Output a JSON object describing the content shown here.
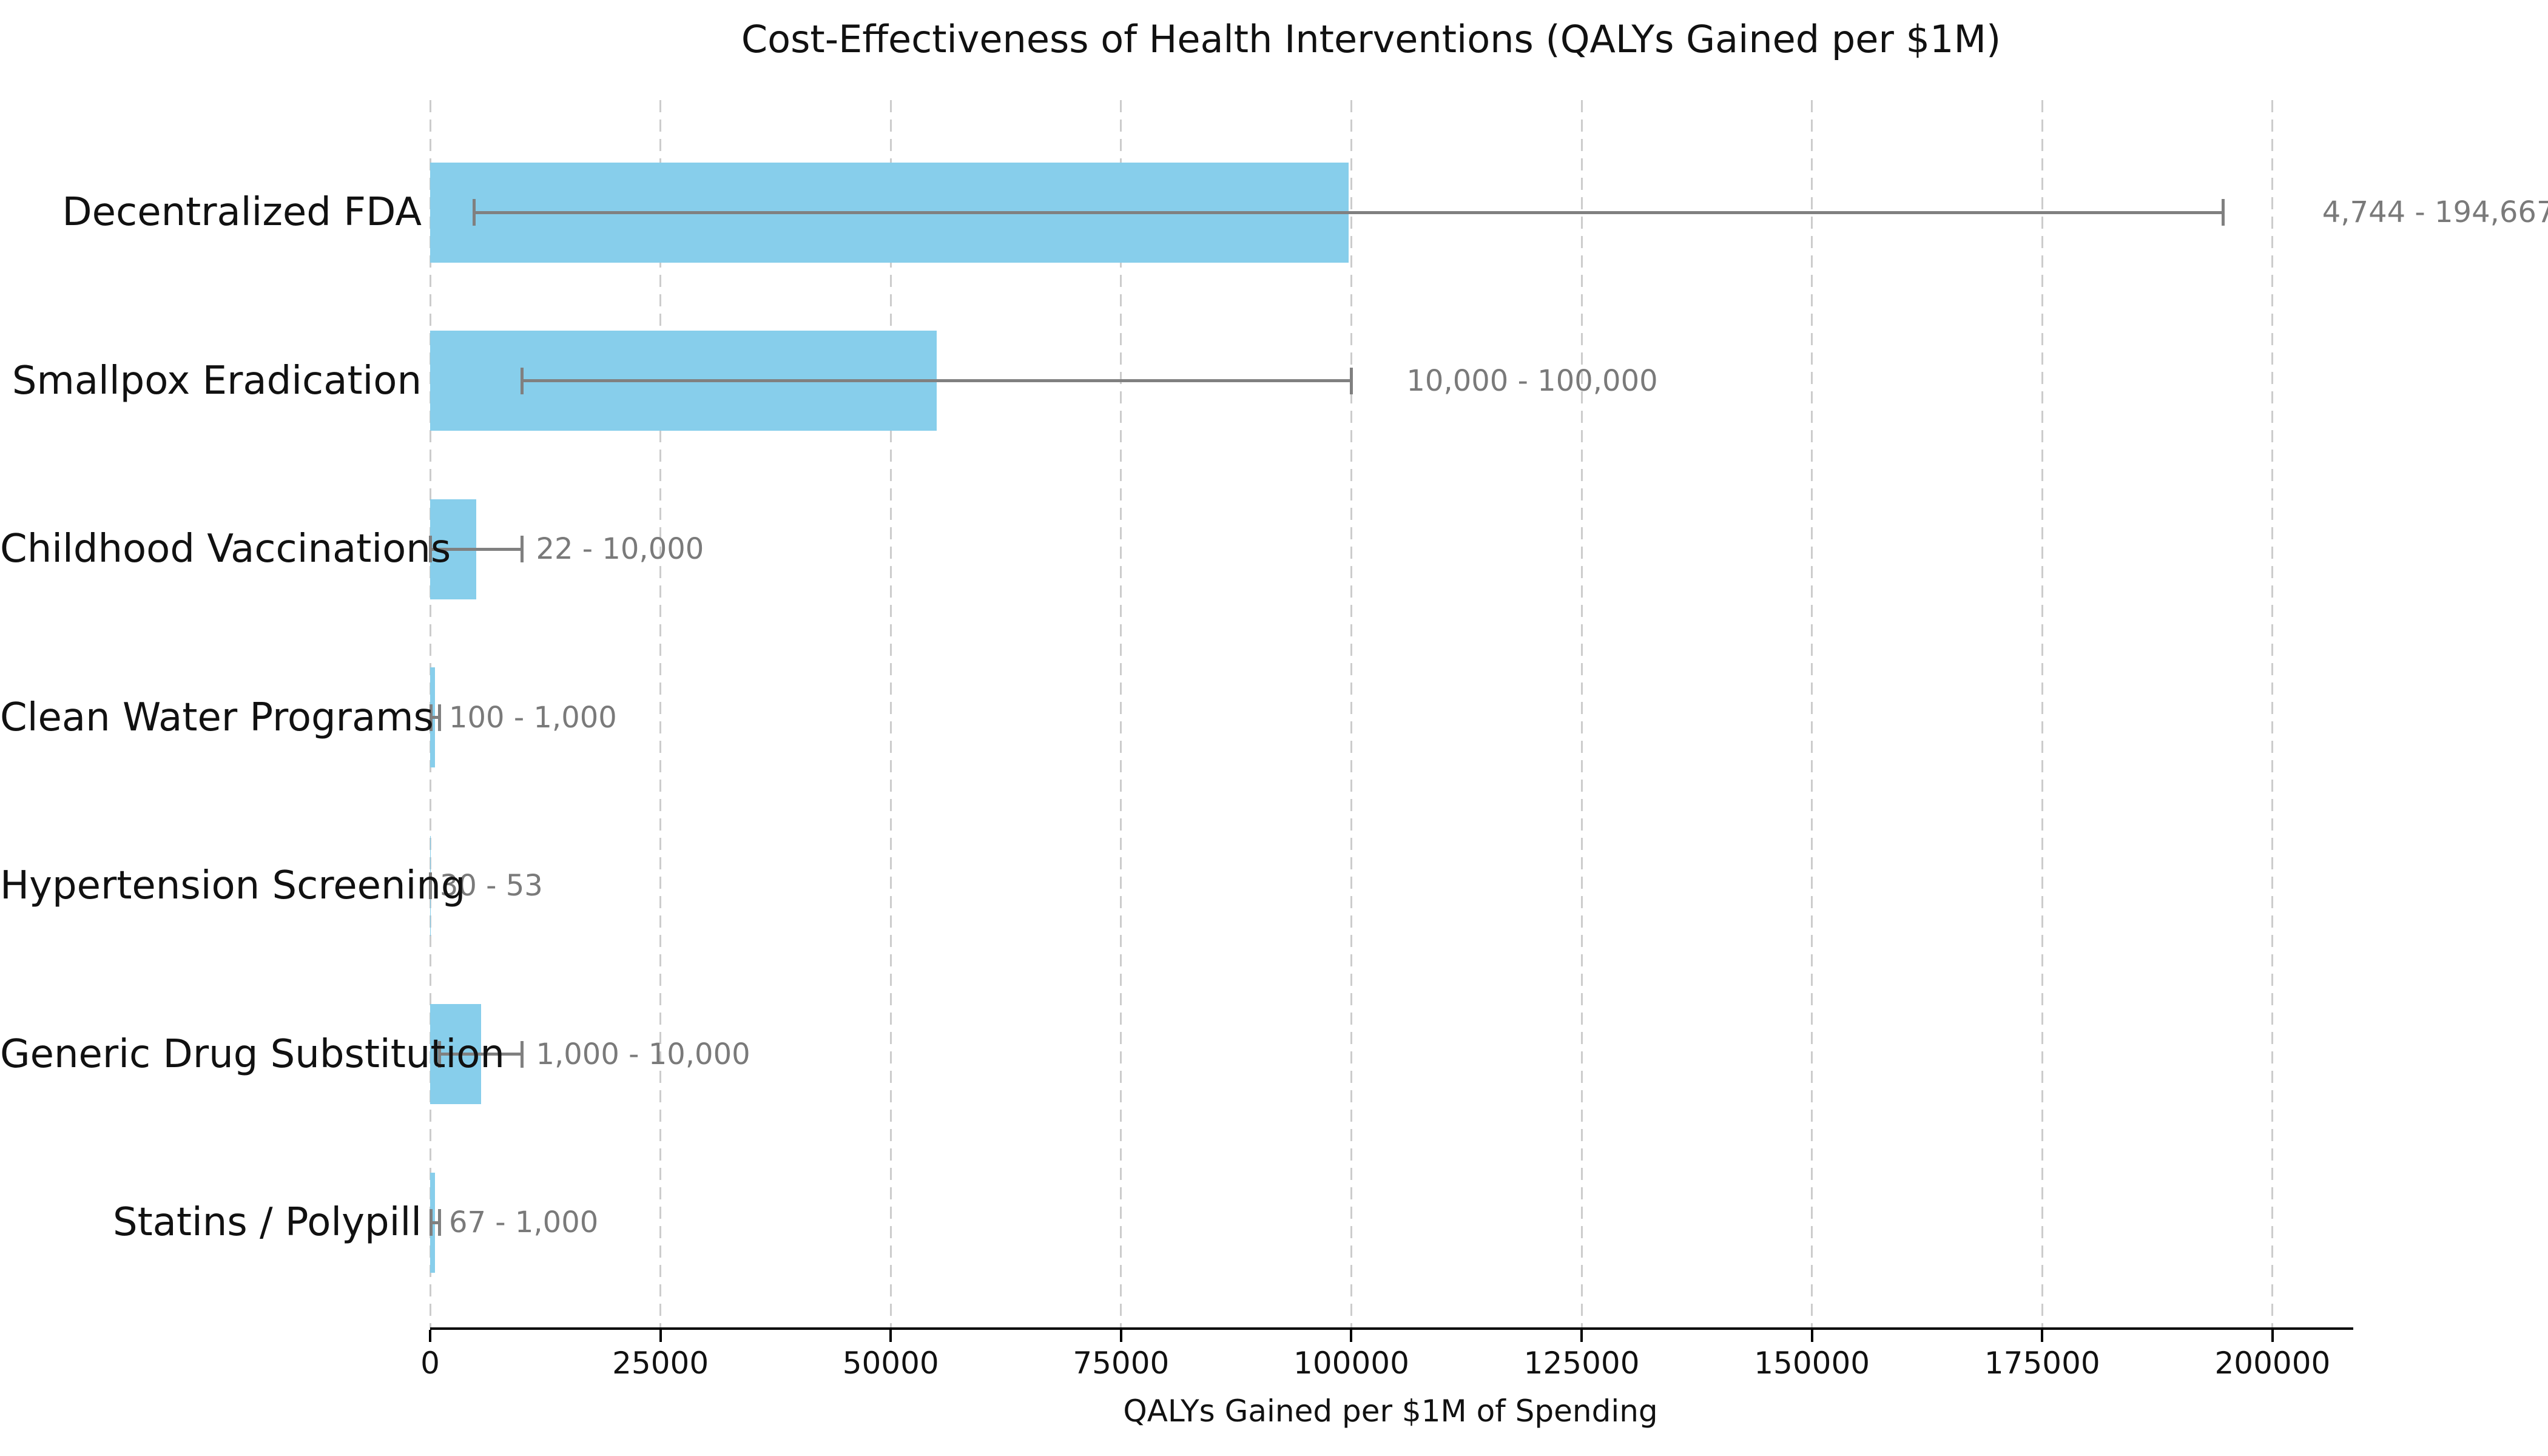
{
  "chart_data": {
    "type": "bar",
    "orientation": "horizontal",
    "title": "Cost-Effectiveness of Health Interventions (QALYs Gained per $1M)",
    "xlabel": "QALYs Gained per $1M of Spending",
    "xlim": [
      0,
      208500
    ],
    "x_ticks": [
      0,
      25000,
      50000,
      75000,
      100000,
      125000,
      150000,
      175000,
      200000
    ],
    "x_tick_labels": [
      "0",
      "25000",
      "50000",
      "75000",
      "100000",
      "125000",
      "150000",
      "175000",
      "200000"
    ],
    "grid": "vertical-dashed",
    "legend": "none",
    "bar_color": "#87CEEB",
    "error_color": "#808080",
    "range_label_color": "#7a7a7a",
    "rows": [
      {
        "category": "Decentralized FDA",
        "low": 4744,
        "high": 194667,
        "bar_value": 99705.5,
        "range_label": "4,744 - 194,667"
      },
      {
        "category": "Smallpox Eradication",
        "low": 10000,
        "high": 100000,
        "bar_value": 55000,
        "range_label": "10,000 - 100,000"
      },
      {
        "category": "Childhood Vaccinations",
        "low": 22,
        "high": 10000,
        "bar_value": 5011,
        "range_label": "22 - 10,000"
      },
      {
        "category": "Clean Water Programs",
        "low": 100,
        "high": 1000,
        "bar_value": 550,
        "range_label": "100 - 1,000"
      },
      {
        "category": "Hypertension Screening",
        "low": 30,
        "high": 53,
        "bar_value": 41.5,
        "range_label": "30 - 53"
      },
      {
        "category": "Generic Drug Substitution",
        "low": 1000,
        "high": 10000,
        "bar_value": 5500,
        "range_label": "1,000 - 10,000"
      },
      {
        "category": "Statins / Polypill",
        "low": 67,
        "high": 1000,
        "bar_value": 533.5,
        "range_label": "67 - 1,000"
      }
    ]
  }
}
